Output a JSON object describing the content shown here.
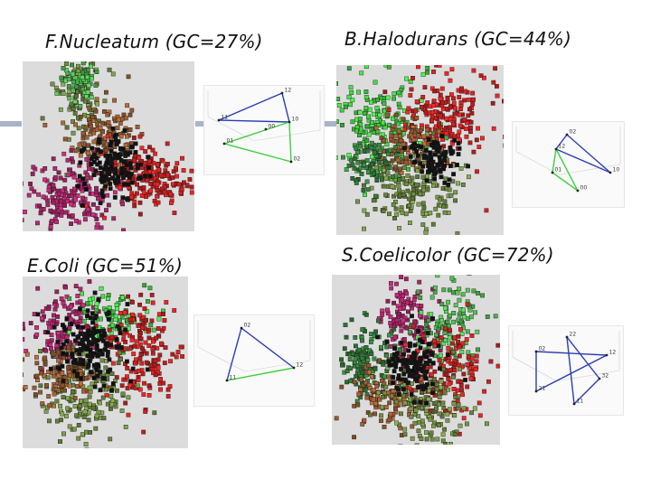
{
  "panels": [
    {
      "id": "fn",
      "title": "F.Nucleatum (GC=27%)",
      "clusters": [
        {
          "color": "#6f8f3f",
          "n": 110
        },
        {
          "color": "#9a5a2c",
          "n": 150
        },
        {
          "color": "#b0226a",
          "n": 200
        },
        {
          "color": "#d21c1c",
          "n": 200
        },
        {
          "color": "#49b84a",
          "n": 60
        },
        {
          "color": "#111111",
          "n": 140
        }
      ],
      "graph": {
        "nodes": [
          {
            "label": "12"
          },
          {
            "label": "11"
          },
          {
            "label": "10"
          },
          {
            "label": "01"
          },
          {
            "label": "02"
          },
          {
            "label": "00"
          }
        ],
        "edges": [
          {
            "from": 0,
            "to": 1,
            "color": "#2a3db3"
          },
          {
            "from": 1,
            "to": 2,
            "color": "#2a3db3"
          },
          {
            "from": 0,
            "to": 2,
            "color": "#2a3db3"
          },
          {
            "from": 3,
            "to": 2,
            "color": "#3ecf3e"
          },
          {
            "from": 2,
            "to": 4,
            "color": "#3ecf3e"
          },
          {
            "from": 3,
            "to": 4,
            "color": "#3ecf3e"
          }
        ]
      }
    },
    {
      "id": "bh",
      "title": "B.Halodurans (GC=44%)",
      "clusters": [
        {
          "color": "#3ecf3e",
          "n": 200
        },
        {
          "color": "#d21c1c",
          "n": 200
        },
        {
          "color": "#6f8f3f",
          "n": 200
        },
        {
          "color": "#9a5a2c",
          "n": 90
        },
        {
          "color": "#2f7a35",
          "n": 80
        },
        {
          "color": "#111111",
          "n": 90
        }
      ],
      "graph": {
        "nodes": [
          {
            "label": "02"
          },
          {
            "label": "12"
          },
          {
            "label": "01"
          },
          {
            "label": "00"
          },
          {
            "label": "10"
          }
        ],
        "edges": [
          {
            "from": 1,
            "to": 0,
            "color": "#2a3db3"
          },
          {
            "from": 0,
            "to": 4,
            "color": "#2a3db3"
          },
          {
            "from": 1,
            "to": 4,
            "color": "#2a3db3"
          },
          {
            "from": 2,
            "to": 1,
            "color": "#3ecf3e"
          },
          {
            "from": 2,
            "to": 3,
            "color": "#3ecf3e"
          },
          {
            "from": 1,
            "to": 3,
            "color": "#3ecf3e"
          }
        ]
      }
    },
    {
      "id": "ec",
      "title": "E.Coli (GC=51%)",
      "clusters": [
        {
          "color": "#b0226a",
          "n": 140
        },
        {
          "color": "#3ecf3e",
          "n": 100
        },
        {
          "color": "#d21c1c",
          "n": 180
        },
        {
          "color": "#6f8f3f",
          "n": 180
        },
        {
          "color": "#9a5a2c",
          "n": 120
        },
        {
          "color": "#111111",
          "n": 160
        }
      ],
      "graph": {
        "nodes": [
          {
            "label": "02"
          },
          {
            "label": "11"
          },
          {
            "label": "12"
          }
        ],
        "edges": [
          {
            "from": 0,
            "to": 1,
            "color": "#2a3db3"
          },
          {
            "from": 1,
            "to": 2,
            "color": "#3ecf3e"
          },
          {
            "from": 0,
            "to": 2,
            "color": "#2a3db3"
          }
        ]
      }
    },
    {
      "id": "sc",
      "title": "S.Coelicolor (GC=72%)",
      "clusters": [
        {
          "color": "#b0226a",
          "n": 130
        },
        {
          "color": "#49b84a",
          "n": 130
        },
        {
          "color": "#2f7a35",
          "n": 150
        },
        {
          "color": "#d21c1c",
          "n": 160
        },
        {
          "color": "#9a5a2c",
          "n": 120
        },
        {
          "color": "#6f8f3f",
          "n": 150
        },
        {
          "color": "#111111",
          "n": 130
        }
      ],
      "graph": {
        "nodes": [
          {
            "label": "02"
          },
          {
            "label": "22"
          },
          {
            "label": "12"
          },
          {
            "label": "21"
          },
          {
            "label": "11"
          },
          {
            "label": "32"
          }
        ],
        "edges": [
          {
            "from": 0,
            "to": 2,
            "color": "#2a3db3"
          },
          {
            "from": 2,
            "to": 3,
            "color": "#2a3db3"
          },
          {
            "from": 3,
            "to": 0,
            "color": "#2a3db3"
          },
          {
            "from": 1,
            "to": 5,
            "color": "#2a3db3"
          },
          {
            "from": 5,
            "to": 4,
            "color": "#2a3db3"
          },
          {
            "from": 4,
            "to": 1,
            "color": "#2a3db3"
          }
        ]
      }
    }
  ]
}
